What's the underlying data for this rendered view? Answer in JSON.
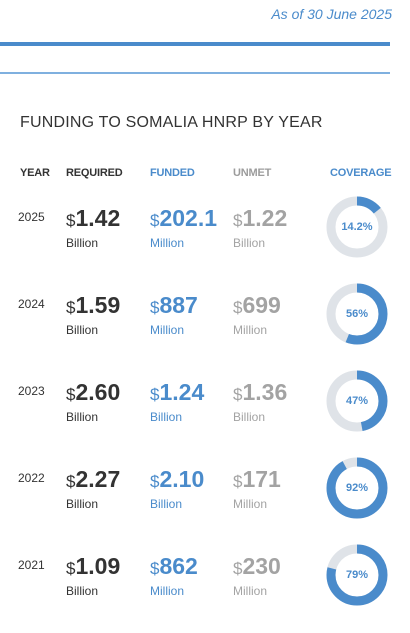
{
  "header": {
    "as_of": "As of 30 June 2025"
  },
  "section": {
    "title": "FUNDING TO SOMALIA HNRP BY YEAR"
  },
  "columns": {
    "year": "YEAR",
    "required": "REQUIRED",
    "funded": "FUNDED",
    "unmet": "UNMET",
    "coverage": "COVERAGE"
  },
  "colors": {
    "accent": "#4a8bcb",
    "track": "#dfe3e8",
    "unmet": "#a3a3a3",
    "text": "#333333"
  },
  "rows": [
    {
      "year": "2025",
      "currency": "$",
      "required": {
        "value": "1.42",
        "unit": "Billion"
      },
      "funded": {
        "value": "202.1",
        "unit": "Million"
      },
      "unmet": {
        "value": "1.22",
        "unit": "Billion"
      },
      "coverage": {
        "label": "14.2%",
        "percent": 14.2
      }
    },
    {
      "year": "2024",
      "currency": "$",
      "required": {
        "value": "1.59",
        "unit": "Billion"
      },
      "funded": {
        "value": "887",
        "unit": "Million"
      },
      "unmet": {
        "value": "699",
        "unit": "Million"
      },
      "coverage": {
        "label": "56%",
        "percent": 56
      }
    },
    {
      "year": "2023",
      "currency": "$",
      "required": {
        "value": "2.60",
        "unit": "Billion"
      },
      "funded": {
        "value": "1.24",
        "unit": "Billion"
      },
      "unmet": {
        "value": "1.36",
        "unit": "Billion"
      },
      "coverage": {
        "label": "47%",
        "percent": 47
      }
    },
    {
      "year": "2022",
      "currency": "$",
      "required": {
        "value": "2.27",
        "unit": "Billion"
      },
      "funded": {
        "value": "2.10",
        "unit": "Billion"
      },
      "unmet": {
        "value": "171",
        "unit": "Million"
      },
      "coverage": {
        "label": "92%",
        "percent": 92
      }
    },
    {
      "year": "2021",
      "currency": "$",
      "required": {
        "value": "1.09",
        "unit": "Billion"
      },
      "funded": {
        "value": "862",
        "unit": "Million"
      },
      "unmet": {
        "value": "230",
        "unit": "Million"
      },
      "coverage": {
        "label": "79%",
        "percent": 79
      }
    }
  ]
}
